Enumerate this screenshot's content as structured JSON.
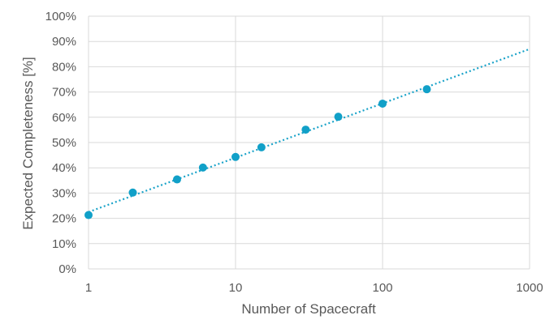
{
  "chart_data": {
    "type": "scatter",
    "title": "",
    "xlabel": "Number of Spacecraft",
    "ylabel": "Expected Completeness [%]",
    "x_scale": "log",
    "xlim": [
      1,
      1000
    ],
    "ylim": [
      0,
      100
    ],
    "x_ticks": [
      "1",
      "10",
      "100",
      "1000"
    ],
    "y_ticks": [
      "0%",
      "10%",
      "20%",
      "30%",
      "40%",
      "50%",
      "60%",
      "70%",
      "80%",
      "90%",
      "100%"
    ],
    "grid": true,
    "legend": "none",
    "series": [
      {
        "x": [
          1,
          2,
          4,
          6,
          10,
          15,
          30,
          50,
          100,
          200
        ],
        "y": [
          21.3,
          30.2,
          35.4,
          40.1,
          44.3,
          48.1,
          55.1,
          60.2,
          65.4,
          71.1
        ]
      }
    ],
    "trendline": {
      "type": "logarithmic",
      "style": "dotted",
      "x": [
        1,
        1000
      ],
      "y": [
        22.5,
        87
      ]
    },
    "colors": {
      "marker": "#11a0c8",
      "trendline": "#1aa3c9",
      "grid": "#d9d9d9",
      "text": "#595959"
    }
  }
}
